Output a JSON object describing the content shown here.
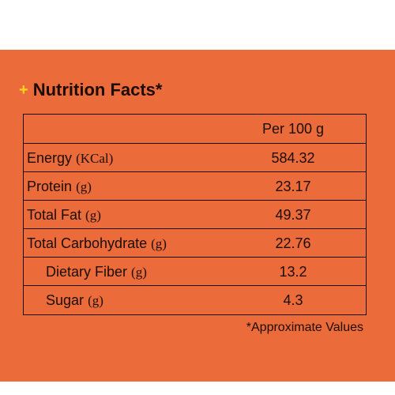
{
  "heading": {
    "plus_symbol": "+",
    "title": "Nutrition Facts*"
  },
  "table": {
    "column_header": "Per 100 g",
    "rows": [
      {
        "name": "Energy",
        "unit": "(KCal)",
        "value": "584.32"
      },
      {
        "name": "Protein",
        "unit": "(g)",
        "value": "23.17"
      },
      {
        "name": "Total Fat",
        "unit": "(g)",
        "value": "49.37"
      },
      {
        "name": "Total Carbohydrate",
        "unit": "(g)",
        "value": "22.76"
      },
      {
        "name": "Dietary Fiber",
        "unit": "(g)",
        "value": "13.2"
      },
      {
        "name": "Sugar",
        "unit": "(g)",
        "value": "4.3"
      }
    ]
  },
  "footnote": "*Approximate Values",
  "colors": {
    "background": "#ec6b3b",
    "plus_accent": "#ffd21f",
    "text": "#1b0d05"
  }
}
